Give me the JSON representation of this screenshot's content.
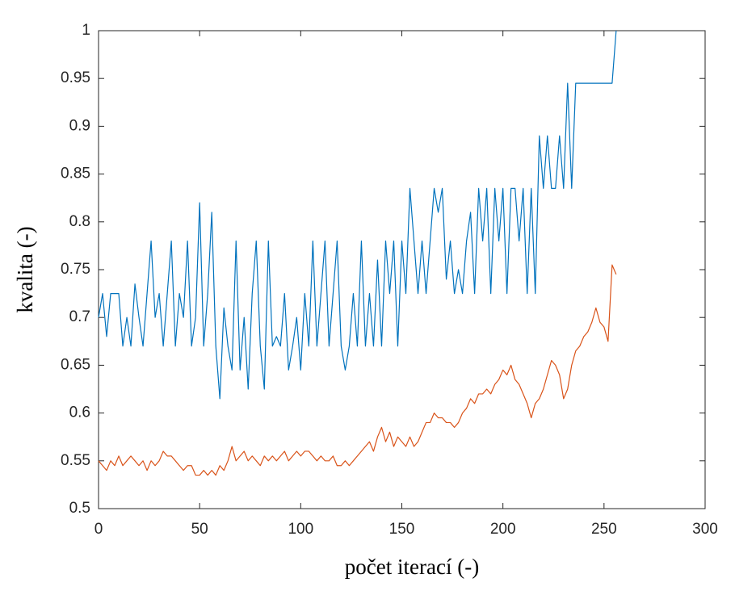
{
  "chart_data": {
    "type": "line",
    "xlabel": "počet iterací (-)",
    "ylabel": "kvalita (-)",
    "x": [
      0,
      2,
      4,
      6,
      8,
      10,
      12,
      14,
      16,
      18,
      20,
      22,
      24,
      26,
      28,
      30,
      32,
      34,
      36,
      38,
      40,
      42,
      44,
      46,
      48,
      50,
      52,
      54,
      56,
      58,
      60,
      62,
      64,
      66,
      68,
      70,
      72,
      74,
      76,
      78,
      80,
      82,
      84,
      86,
      88,
      90,
      92,
      94,
      96,
      98,
      100,
      102,
      104,
      106,
      108,
      110,
      112,
      114,
      116,
      118,
      120,
      122,
      124,
      126,
      128,
      130,
      132,
      134,
      136,
      138,
      140,
      142,
      144,
      146,
      148,
      150,
      152,
      154,
      156,
      158,
      160,
      162,
      164,
      166,
      168,
      170,
      172,
      174,
      176,
      178,
      180,
      182,
      184,
      186,
      188,
      190,
      192,
      194,
      196,
      198,
      200,
      202,
      204,
      206,
      208,
      210,
      212,
      214,
      216,
      218,
      220,
      222,
      224,
      226,
      228,
      230,
      232,
      234,
      236,
      238,
      240,
      242,
      244,
      246,
      248,
      250,
      252,
      254,
      256
    ],
    "series": [
      {
        "color": "#0072BD",
        "values": [
          0.7,
          0.725,
          0.68,
          0.725,
          0.725,
          0.725,
          0.67,
          0.7,
          0.67,
          0.735,
          0.7,
          0.67,
          0.725,
          0.78,
          0.7,
          0.725,
          0.67,
          0.725,
          0.78,
          0.67,
          0.725,
          0.7,
          0.78,
          0.67,
          0.7,
          0.82,
          0.67,
          0.725,
          0.81,
          0.67,
          0.615,
          0.71,
          0.67,
          0.645,
          0.78,
          0.645,
          0.7,
          0.625,
          0.725,
          0.78,
          0.67,
          0.625,
          0.78,
          0.67,
          0.68,
          0.67,
          0.725,
          0.645,
          0.67,
          0.7,
          0.645,
          0.725,
          0.67,
          0.78,
          0.67,
          0.725,
          0.78,
          0.67,
          0.725,
          0.78,
          0.67,
          0.645,
          0.67,
          0.725,
          0.67,
          0.78,
          0.67,
          0.725,
          0.67,
          0.76,
          0.67,
          0.78,
          0.725,
          0.78,
          0.67,
          0.78,
          0.725,
          0.835,
          0.78,
          0.725,
          0.78,
          0.725,
          0.78,
          0.835,
          0.81,
          0.835,
          0.74,
          0.78,
          0.725,
          0.75,
          0.725,
          0.78,
          0.81,
          0.725,
          0.835,
          0.78,
          0.835,
          0.725,
          0.835,
          0.78,
          0.835,
          0.725,
          0.835,
          0.835,
          0.78,
          0.835,
          0.725,
          0.835,
          0.725,
          0.89,
          0.835,
          0.89,
          0.835,
          0.835,
          0.89,
          0.835,
          0.945,
          0.835,
          0.945,
          0.945,
          0.945,
          0.945,
          0.945,
          0.945,
          0.945,
          0.945,
          0.945,
          0.945,
          1
        ]
      },
      {
        "color": "#D95319",
        "values": [
          0.55,
          0.545,
          0.54,
          0.55,
          0.545,
          0.555,
          0.545,
          0.55,
          0.555,
          0.55,
          0.545,
          0.55,
          0.54,
          0.55,
          0.545,
          0.55,
          0.56,
          0.555,
          0.555,
          0.55,
          0.545,
          0.54,
          0.545,
          0.545,
          0.535,
          0.535,
          0.54,
          0.535,
          0.54,
          0.535,
          0.545,
          0.54,
          0.55,
          0.565,
          0.55,
          0.555,
          0.56,
          0.55,
          0.555,
          0.55,
          0.545,
          0.555,
          0.55,
          0.555,
          0.55,
          0.555,
          0.56,
          0.55,
          0.555,
          0.56,
          0.555,
          0.56,
          0.56,
          0.555,
          0.55,
          0.555,
          0.55,
          0.55,
          0.555,
          0.545,
          0.545,
          0.55,
          0.545,
          0.55,
          0.555,
          0.56,
          0.565,
          0.57,
          0.56,
          0.575,
          0.585,
          0.57,
          0.58,
          0.565,
          0.575,
          0.57,
          0.565,
          0.575,
          0.565,
          0.57,
          0.58,
          0.59,
          0.59,
          0.6,
          0.595,
          0.595,
          0.59,
          0.59,
          0.585,
          0.59,
          0.6,
          0.605,
          0.615,
          0.61,
          0.62,
          0.62,
          0.625,
          0.62,
          0.63,
          0.635,
          0.645,
          0.64,
          0.65,
          0.635,
          0.63,
          0.62,
          0.61,
          0.595,
          0.61,
          0.615,
          0.625,
          0.64,
          0.655,
          0.65,
          0.64,
          0.615,
          0.625,
          0.65,
          0.665,
          0.67,
          0.68,
          0.685,
          0.695,
          0.71,
          0.695,
          0.69,
          0.675,
          0.755,
          0.745
        ]
      }
    ],
    "xlim": [
      0,
      300
    ],
    "xticks": [
      0,
      50,
      100,
      150,
      200,
      250,
      300
    ],
    "ylim": [
      0.5,
      1
    ],
    "yticks": [
      0.5,
      0.55,
      0.6,
      0.65,
      0.7,
      0.75,
      0.8,
      0.85,
      0.9,
      0.95,
      1
    ]
  }
}
